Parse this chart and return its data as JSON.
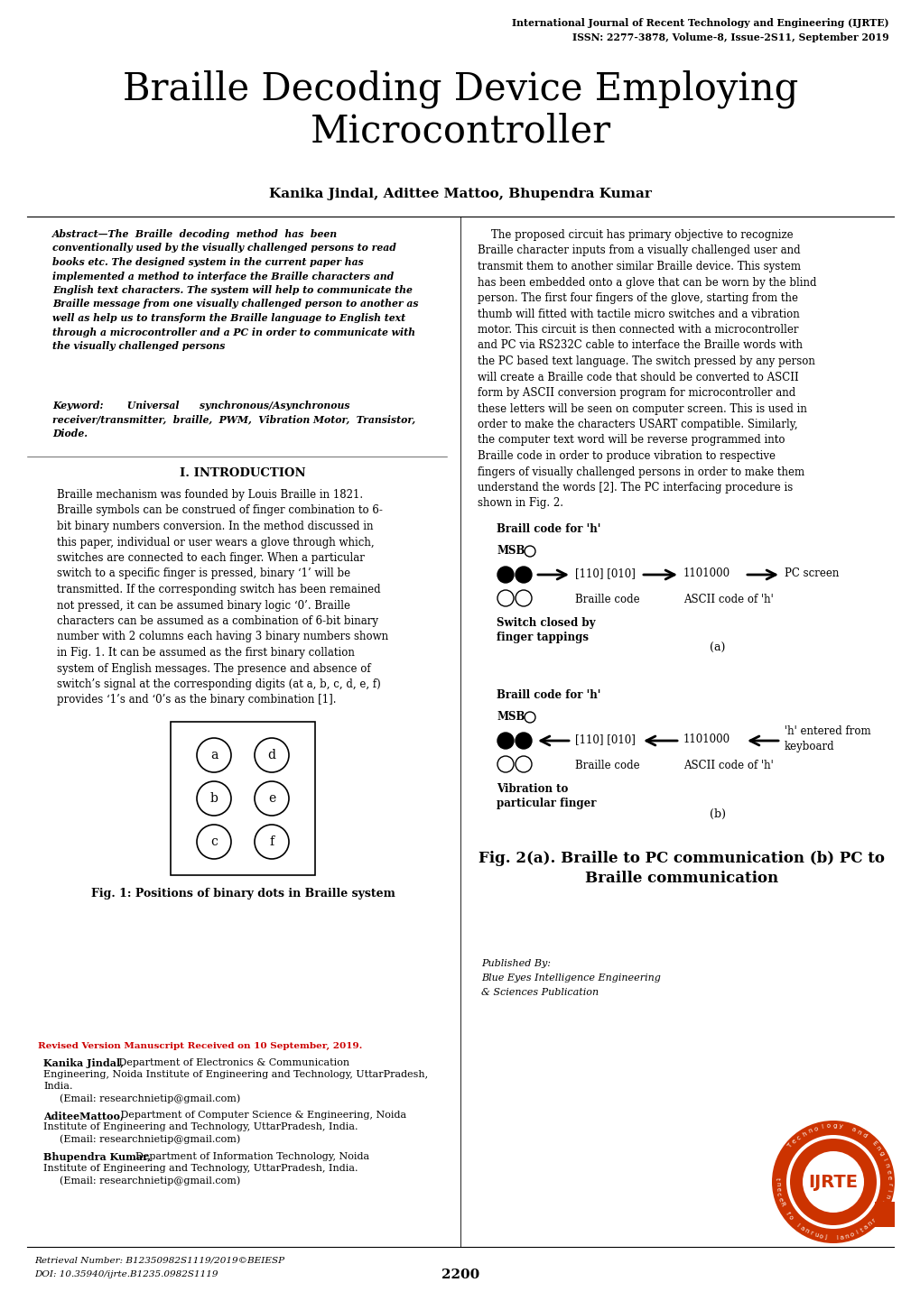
{
  "header_line1": "International Journal of Recent Technology and Engineering (IJRTE)",
  "header_line2": "ISSN: 2277-3878, Volume-8, Issue-2S11, September 2019",
  "title_line1": "Braille Decoding Device Employing",
  "title_line2": "Microcontroller",
  "authors": "Kanika Jindal, Adittee Mattoo, Bhupendra Kumar",
  "intro_heading": "I. INTRODUCTION",
  "fig1_caption": "Fig. 1: Positions of binary dots in Braille system",
  "fig2_caption_line1": "Fig. 2(a). Braille to PC communication (b) PC to",
  "fig2_caption_line2": "Braille communication",
  "footnote_revised": "Revised Version Manuscript Received on 10 September, 2019.",
  "retrieval": "Retrieval Number: B12350982S1119/2019©BEIESP",
  "doi": "DOI: 10.35940/ijrte.B1235.0982S1119",
  "page_number": "2200",
  "background_color": "#ffffff",
  "text_color": "#000000",
  "red_color": "#cc0000"
}
